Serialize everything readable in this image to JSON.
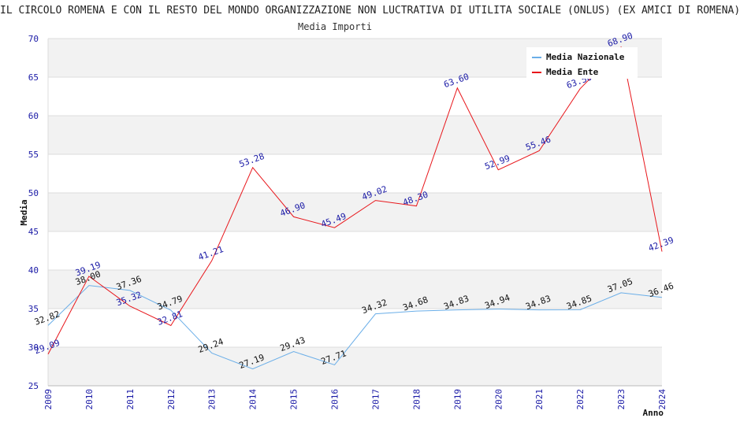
{
  "chart_data": {
    "type": "line",
    "title": "IL CIRCOLO ROMENA E CON IL RESTO DEL MONDO ORGANIZZAZIONE NON LUCTRATIVA DI UTILITA SOCIALE (ONLUS) (EX AMICI DI ROMENA)",
    "subtitle": "Media Importi",
    "xlabel": "Anno",
    "ylabel": "Media",
    "ylim": [
      25,
      70
    ],
    "yticks": [
      25,
      30,
      35,
      40,
      45,
      50,
      55,
      60,
      65,
      70
    ],
    "grid": true,
    "legend_position": "top-right",
    "x": [
      "2009",
      "2010",
      "2011",
      "2012",
      "2013",
      "2014",
      "2015",
      "2016",
      "2017",
      "2018",
      "2019",
      "2020",
      "2021",
      "2022",
      "2023",
      "2024"
    ],
    "series": [
      {
        "name": "Media Nazionale",
        "color": "#6aaee8",
        "values": [
          32.82,
          38.0,
          37.36,
          34.79,
          29.24,
          27.19,
          29.43,
          27.71,
          34.32,
          34.68,
          34.83,
          34.94,
          34.83,
          34.85,
          37.05,
          36.46
        ],
        "labels": [
          "32.82",
          "38.00",
          "37.36",
          "34.79",
          "29.24",
          "27.19",
          "29.43",
          "27.71",
          "34.32",
          "34.68",
          "34.83",
          "34.94",
          "34.83",
          "34.85",
          "37.05",
          "36.46"
        ]
      },
      {
        "name": "Media Ente",
        "color": "#e8161b",
        "values": [
          29.09,
          39.19,
          35.32,
          32.81,
          41.21,
          53.28,
          46.9,
          45.49,
          49.02,
          48.3,
          63.6,
          52.99,
          55.46,
          63.5,
          68.9,
          42.39
        ],
        "labels": [
          "29.09",
          "39.19",
          "35.32",
          "32.81",
          "41.21",
          "53.28",
          "46.90",
          "45.49",
          "49.02",
          "48.30",
          "63.60",
          "52.99",
          "55.46",
          "63.50",
          "68.90",
          "42.39"
        ]
      }
    ]
  }
}
